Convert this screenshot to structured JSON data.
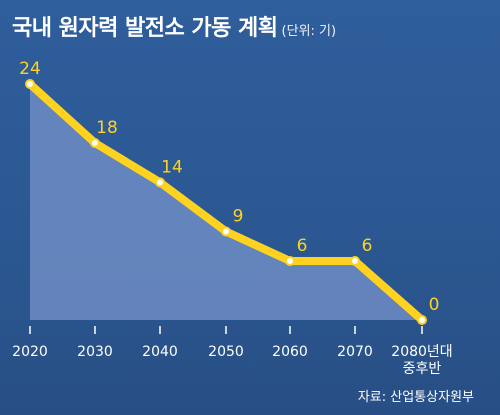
{
  "header": {
    "title": "국내 원자력 발전소 가동 계획",
    "unit": "(단위: 기)"
  },
  "source": "자료: 산업통상자원부",
  "colors": {
    "background": "#2d5a96",
    "line": "#ffd21f",
    "label": "#ffd21f",
    "area": "#6f8cc4",
    "axis_text": "#ffffff"
  },
  "chart_data": {
    "type": "area",
    "title": "국내 원자력 발전소 가동 계획",
    "categories": [
      "2020",
      "2030",
      "2040",
      "2050",
      "2060",
      "2070",
      "2080년대 중후반"
    ],
    "values": [
      24,
      18,
      14,
      9,
      6,
      6,
      0
    ],
    "ylim": [
      0,
      24
    ],
    "grid": false
  }
}
